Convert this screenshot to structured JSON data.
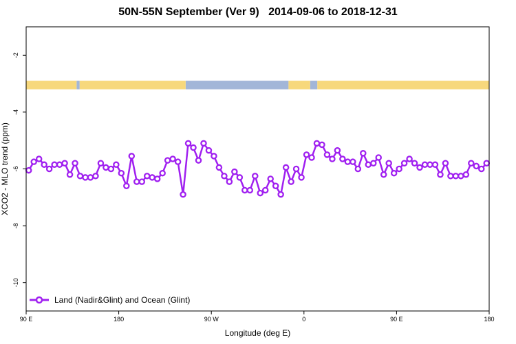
{
  "chart_data": {
    "type": "line",
    "title": "50N-55N September (Ver 9)   2014-09-06 to 2018-12-31",
    "xlabel": "Longitude (deg E)",
    "ylabel": "XCO2 - MLO trend (ppm)",
    "x_ticks": [
      {
        "value": 90,
        "label": "90 E"
      },
      {
        "value": 180,
        "label": "180"
      },
      {
        "value": 270,
        "label": "90 W"
      },
      {
        "value": 360,
        "label": "0"
      },
      {
        "value": 450,
        "label": "90 E"
      },
      {
        "value": 540,
        "label": "180"
      }
    ],
    "y_ticks": [
      -2,
      -4,
      -6,
      -8,
      -10
    ],
    "xlim": [
      90,
      540
    ],
    "ylim": [
      -11,
      -1
    ],
    "grid": false,
    "legend_position": "bottom-left",
    "colors": {
      "series": "#a020f0",
      "land": "#f7d87c",
      "ocean": "#a2b6d8"
    },
    "surface_band": {
      "y_range": [
        -3.2,
        -2.9
      ],
      "land_segments": [
        [
          90,
          139
        ],
        [
          142,
          245
        ],
        [
          345,
          366
        ],
        [
          373,
          548
        ]
      ],
      "ocean_segments": [
        [
          139,
          142
        ],
        [
          245,
          345
        ],
        [
          366,
          373
        ],
        [
          548,
          630
        ]
      ]
    },
    "series": [
      {
        "name": "Land (Nadir&Glint) and Ocean (Glint)",
        "x": [
          92.5,
          97.5,
          102.5,
          107.5,
          112.5,
          117.5,
          122.5,
          127.5,
          132.5,
          137.5,
          142.5,
          147.5,
          152.5,
          157.5,
          162.5,
          167.5,
          172.5,
          177.5,
          182.5,
          187.5,
          192.5,
          197.5,
          202.5,
          207.5,
          212.5,
          217.5,
          222.5,
          227.5,
          232.5,
          237.5,
          242.5,
          247.5,
          252.5,
          257.5,
          262.5,
          267.5,
          272.5,
          277.5,
          282.5,
          287.5,
          292.5,
          297.5,
          302.5,
          307.5,
          312.5,
          317.5,
          322.5,
          327.5,
          332.5,
          337.5,
          342.5,
          347.5,
          352.5,
          357.5,
          362.5,
          367.5,
          372.5,
          377.5,
          382.5,
          387.5,
          392.5,
          397.5,
          402.5,
          407.5,
          412.5,
          417.5,
          422.5,
          427.5,
          432.5,
          437.5,
          442.5,
          447.5,
          452.5,
          457.5,
          462.5,
          467.5,
          472.5,
          477.5,
          482.5,
          487.5,
          492.5,
          497.5,
          502.5,
          507.5,
          512.5,
          517.5,
          522.5,
          527.5,
          532.5,
          537.5
        ],
        "y": [
          -6.05,
          -5.75,
          -5.65,
          -5.85,
          -6.0,
          -5.85,
          -5.85,
          -5.8,
          -6.2,
          -5.8,
          -6.25,
          -6.3,
          -6.3,
          -6.25,
          -5.8,
          -5.95,
          -6.0,
          -5.85,
          -6.15,
          -6.6,
          -5.55,
          -6.45,
          -6.45,
          -6.25,
          -6.3,
          -6.35,
          -6.15,
          -5.7,
          -5.65,
          -5.75,
          -6.9,
          -5.1,
          -5.25,
          -5.7,
          -5.1,
          -5.35,
          -5.55,
          -5.95,
          -6.25,
          -6.45,
          -6.1,
          -6.3,
          -6.75,
          -6.75,
          -6.25,
          -6.85,
          -6.75,
          -6.35,
          -6.6,
          -6.9,
          -5.95,
          -6.45,
          -6.0,
          -6.3,
          -5.5,
          -5.6,
          -5.1,
          -5.15,
          -5.5,
          -5.65,
          -5.35,
          -5.65,
          -5.75,
          -5.75,
          -6.0,
          -5.45,
          -5.85,
          -5.8,
          -5.6,
          -6.2,
          -5.8,
          -6.15,
          -6.0,
          -5.8,
          -5.65,
          -5.8,
          -5.95,
          -5.85,
          -5.85,
          -5.85,
          -6.2,
          -5.8,
          -6.25,
          -6.25,
          -6.25,
          -6.2,
          -5.8,
          -5.9,
          -6.0,
          -5.8
        ]
      }
    ]
  }
}
